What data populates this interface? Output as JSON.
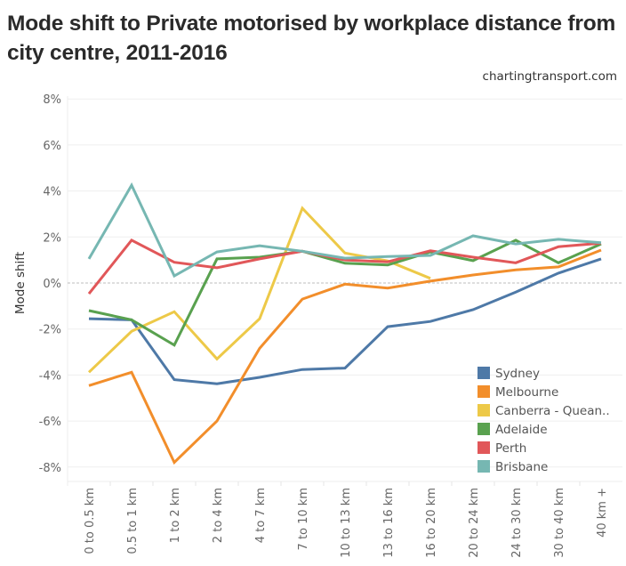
{
  "header": {
    "title": "Mode shift to Private motorised by workplace distance from city centre, 2011-2016",
    "source": "chartingtransport.com"
  },
  "chart_data": {
    "type": "line",
    "title": "Mode shift to Private motorised by workplace distance from city centre, 2011-2016",
    "xlabel": "",
    "ylabel": "Mode shift",
    "ylim": [
      -8.5,
      8
    ],
    "yticks": [
      8,
      6,
      4,
      2,
      0,
      -2,
      -4,
      -6,
      -8
    ],
    "ytick_labels": [
      "8%",
      "6%",
      "4%",
      "2%",
      "0%",
      "-2%",
      "-4%",
      "-6%",
      "-8%"
    ],
    "grid": true,
    "zero_line": "dashed",
    "legend_position": "bottom-right",
    "categories": [
      "0 to 0.5 km",
      "0.5 to 1 km",
      "1 to 2 km",
      "2 to 4 km",
      "4 to 7 km",
      "7 to 10 km",
      "10 to 13 km",
      "13 to 16 km",
      "16 to 20 km",
      "20 to 24 km",
      "24 to 30 km",
      "30 to 40 km",
      "40 km +"
    ],
    "series": [
      {
        "name": "Sydney",
        "color": "#4e79a7",
        "values": [
          -1.55,
          -1.6,
          -4.2,
          -4.38,
          -4.1,
          -3.76,
          -3.7,
          -1.9,
          -1.67,
          -1.16,
          -0.4,
          0.43,
          1.05
        ]
      },
      {
        "name": "Melbourne",
        "color": "#f28e2b",
        "values": [
          -4.46,
          -3.88,
          -7.8,
          -6.0,
          -2.84,
          -0.7,
          -0.05,
          -0.22,
          0.08,
          0.35,
          0.57,
          0.7,
          1.43
        ]
      },
      {
        "name": "Canberra - Quean..",
        "color": "#edc948",
        "values": [
          -3.88,
          -2.1,
          -1.25,
          -3.3,
          -1.55,
          3.25,
          1.3,
          0.96,
          0.2,
          null,
          null,
          null,
          null
        ]
      },
      {
        "name": "Adelaide",
        "color": "#59a14f",
        "values": [
          -1.2,
          -1.6,
          -2.7,
          1.05,
          1.12,
          1.38,
          0.86,
          0.78,
          1.35,
          0.97,
          1.86,
          0.88,
          1.7
        ]
      },
      {
        "name": "Perth",
        "color": "#e15759",
        "values": [
          -0.47,
          1.86,
          0.9,
          0.66,
          1.05,
          1.38,
          1.0,
          0.92,
          1.4,
          1.12,
          0.88,
          1.58,
          1.73
        ]
      },
      {
        "name": "Brisbane",
        "color": "#76b7b2",
        "values": [
          1.05,
          4.25,
          0.31,
          1.35,
          1.62,
          1.38,
          1.08,
          1.15,
          1.2,
          2.05,
          1.7,
          1.9,
          1.75
        ]
      }
    ]
  }
}
